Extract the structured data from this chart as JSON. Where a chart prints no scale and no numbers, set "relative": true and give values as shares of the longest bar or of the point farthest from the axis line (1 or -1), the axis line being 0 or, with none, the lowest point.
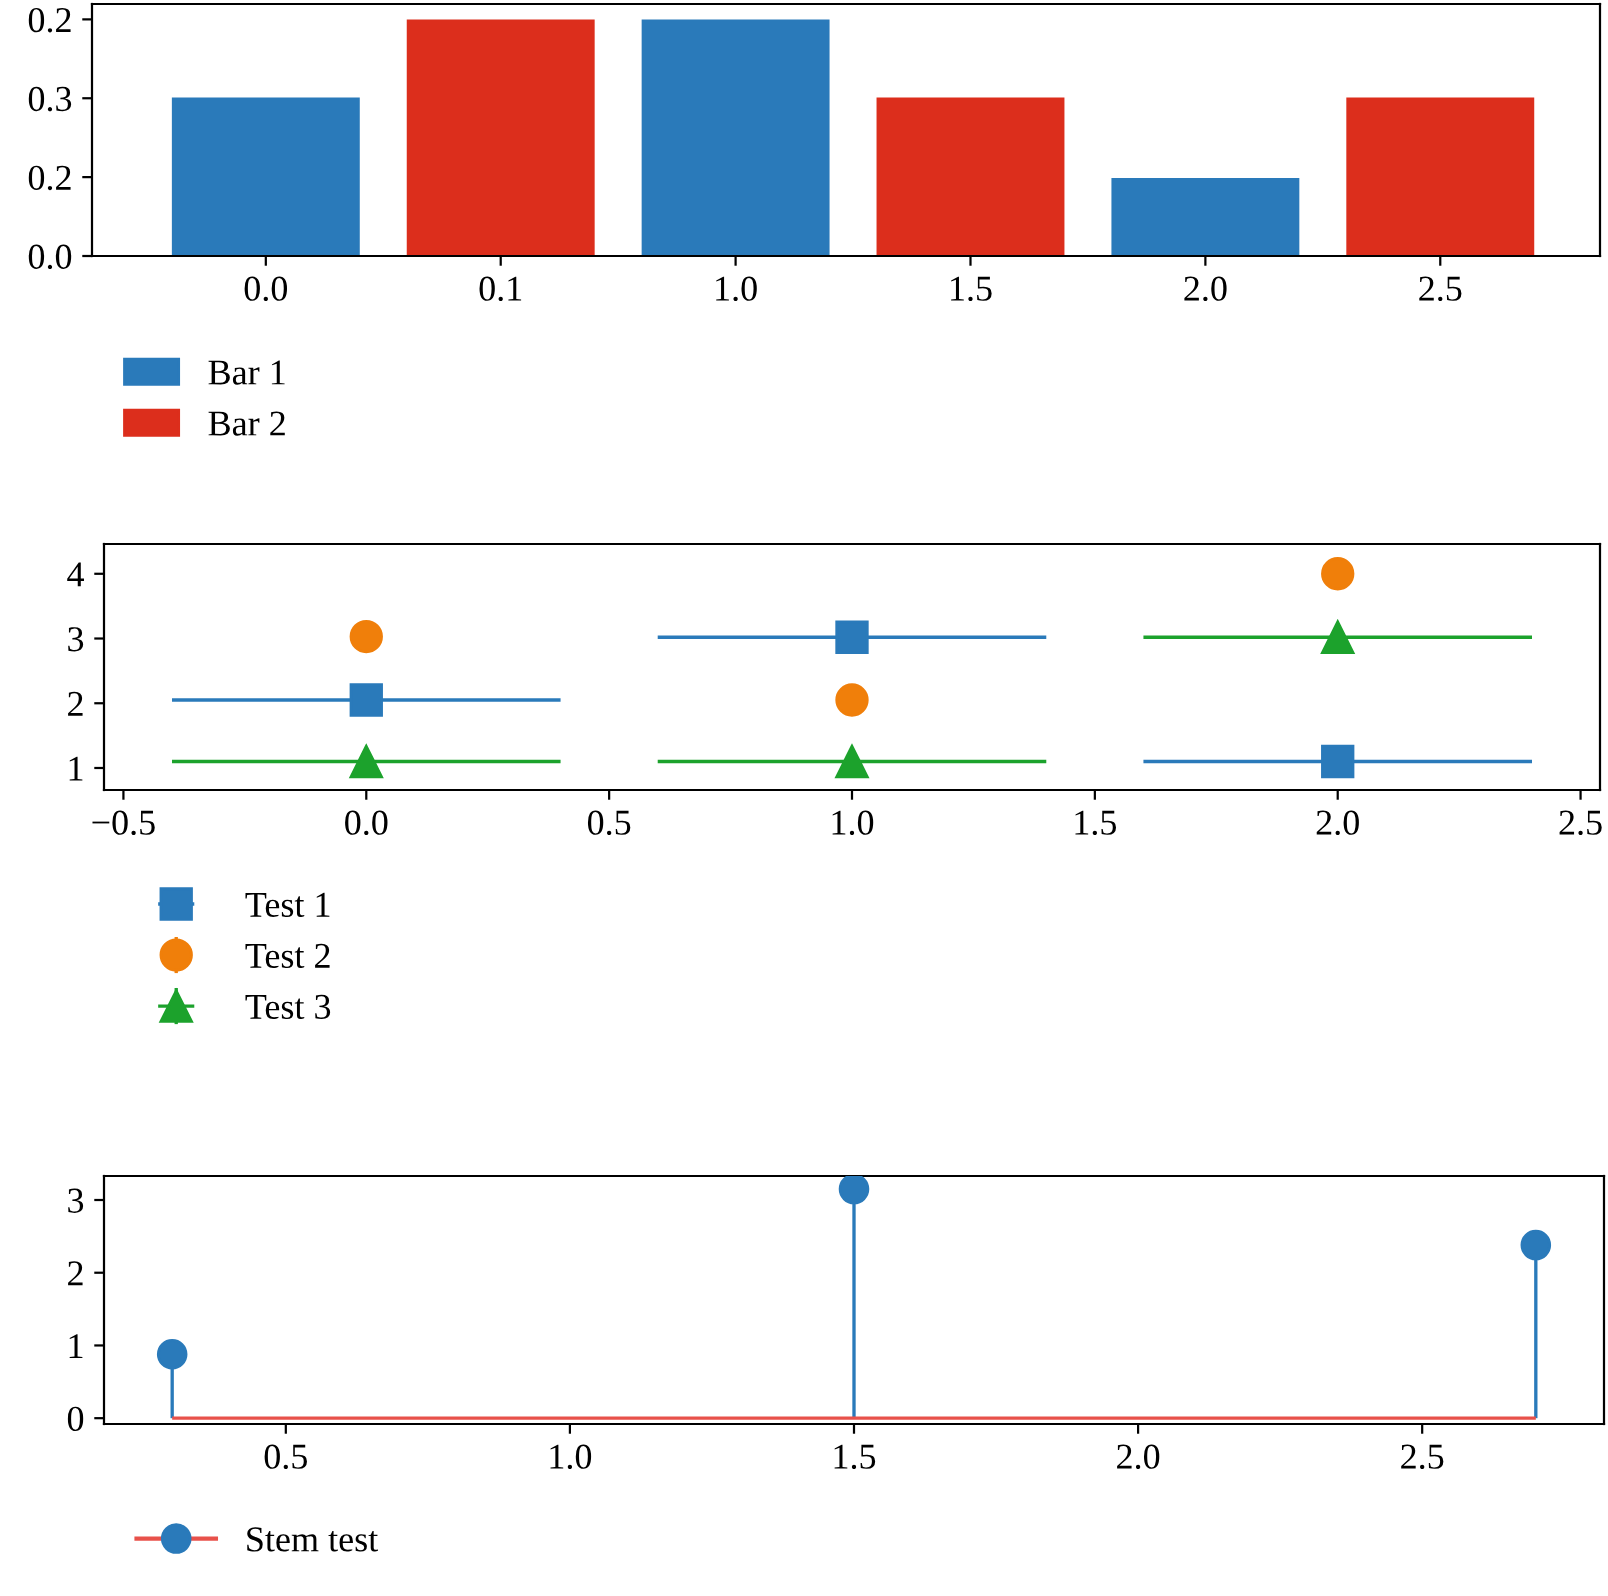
{
  "chart_data": [
    {
      "type": "bar",
      "categories": [
        "0.0",
        "0.1",
        "1.0",
        "1.5",
        "2.0",
        "2.5"
      ],
      "series": [
        {
          "name": "Bar 1",
          "color": "#2a7aba",
          "values": [
            0.67,
            null,
            1,
            null,
            0.33,
            null
          ]
        },
        {
          "name": "Bar 2",
          "color": "#dc2e1c",
          "values": [
            null,
            1,
            null,
            0.67,
            null,
            0.67
          ]
        }
      ],
      "relative": true,
      "annotations": [
        "0.0",
        "0.2",
        "0.3",
        "0.2"
      ],
      "legend": "bottom left"
    },
    {
      "type": "scatter",
      "x": [
        0,
        1,
        2
      ],
      "series": [
        {
          "name": "Test 1",
          "color": "#2a7aba",
          "marker": "square",
          "values": [
            2.05,
            3.02,
            1.1
          ],
          "xerrors": [
            0.4,
            0.4,
            0.4
          ]
        },
        {
          "name": "Test 2",
          "color": "#f07f0a",
          "marker": "circle",
          "values": [
            3.03,
            2.05,
            4.0
          ],
          "errors": [
            0.2,
            0.2,
            0.2
          ]
        },
        {
          "name": "Test 3",
          "color": "#1ca22c",
          "marker": "triangle",
          "values": [
            1.1,
            1.1,
            3.02
          ],
          "errors": [
            0.2,
            0.2,
            0.2
          ],
          "xerrors": [
            0.4,
            0.4,
            0.4
          ]
        }
      ],
      "xlim": [
        -0.54,
        2.54
      ],
      "xticks": [
        {
          "value": -0.5,
          "label": "−0.5"
        },
        {
          "value": 0,
          "label": "0.0"
        },
        {
          "value": 0.5,
          "label": "0.5"
        },
        {
          "value": 1,
          "label": "1.0"
        },
        {
          "value": 1.5,
          "label": "1.5"
        },
        {
          "value": 2,
          "label": "2.0"
        },
        {
          "value": 2.5,
          "label": "2.5"
        }
      ],
      "ylim": [
        0.66,
        4.46
      ],
      "yticks": [
        1,
        2,
        3,
        4
      ],
      "legend": "bottom left",
      "grid": false
    },
    {
      "type": "lollipop",
      "x": [
        0.3,
        1.5,
        2.7
      ],
      "series": [
        {
          "name": "Stem test",
          "color": "#2a7aba",
          "values": [
            0.88,
            3.15,
            2.38
          ]
        }
      ],
      "ref_lines": [
        {
          "axis": "y",
          "value": 0,
          "color": "#e8514a"
        }
      ],
      "xlim": [
        0.18,
        2.82
      ],
      "xticks": [
        {
          "value": 0.5,
          "label": "0.5"
        },
        {
          "value": 1,
          "label": "1.0"
        },
        {
          "value": 1.5,
          "label": "1.5"
        },
        {
          "value": 2,
          "label": "2.0"
        },
        {
          "value": 2.5,
          "label": "2.5"
        }
      ],
      "ylim": [
        -0.08,
        3.33
      ],
      "yticks": [
        0,
        1,
        2,
        3
      ],
      "marker": "circle",
      "legend": "bottom left",
      "grid": false
    }
  ]
}
